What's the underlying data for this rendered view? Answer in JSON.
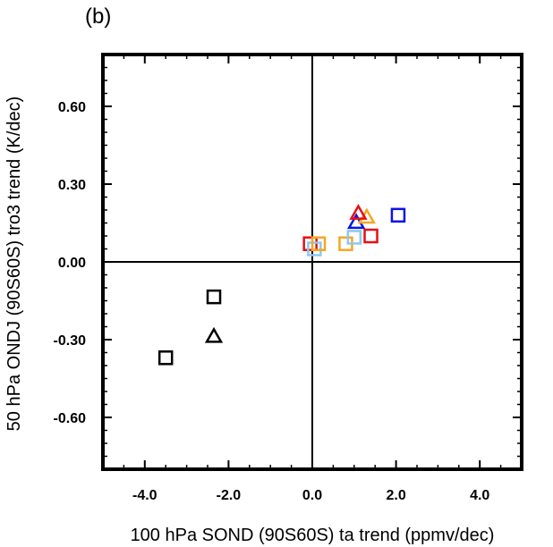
{
  "chart_data": {
    "type": "scatter",
    "panel_label": "(b)",
    "title": "",
    "xlabel": "100 hPa SOND (90S60S) ta trend (ppmv/dec)",
    "ylabel": "50 hPa ONDJ (90S60S) tro3 trend (K/dec)",
    "xlim": [
      -5.0,
      5.0
    ],
    "ylim": [
      -0.8,
      0.8
    ],
    "x_ticks": [
      -4.0,
      -2.0,
      0.0,
      2.0,
      4.0
    ],
    "x_tick_labels": [
      "-4.0",
      "-2.0",
      "0.0",
      "2.0",
      "4.0"
    ],
    "y_ticks": [
      -0.6,
      -0.3,
      0.0,
      0.3,
      0.6
    ],
    "y_tick_labels": [
      "-0.60",
      "-0.30",
      "0.00",
      "0.30",
      "0.60"
    ],
    "zero_lines": true,
    "grid": false,
    "legend": "none",
    "colors": {
      "black": "#000000",
      "blue": "#0a14e6",
      "red": "#e60f14",
      "orange": "#f5a623",
      "lightblue": "#8cc8f0"
    },
    "points": [
      {
        "x": -3.5,
        "y": -0.37,
        "marker": "square",
        "color": "black"
      },
      {
        "x": -2.35,
        "y": -0.135,
        "marker": "square",
        "color": "black"
      },
      {
        "x": -2.35,
        "y": -0.29,
        "marker": "triangle",
        "color": "black"
      },
      {
        "x": -0.05,
        "y": 0.07,
        "marker": "square",
        "color": "red"
      },
      {
        "x": 0.05,
        "y": 0.05,
        "marker": "square",
        "color": "lightblue"
      },
      {
        "x": 0.15,
        "y": 0.07,
        "marker": "square",
        "color": "orange"
      },
      {
        "x": 0.8,
        "y": 0.07,
        "marker": "square",
        "color": "orange"
      },
      {
        "x": 1.0,
        "y": 0.095,
        "marker": "square",
        "color": "lightblue"
      },
      {
        "x": 1.4,
        "y": 0.1,
        "marker": "square",
        "color": "red"
      },
      {
        "x": 2.05,
        "y": 0.18,
        "marker": "square",
        "color": "blue"
      },
      {
        "x": 1.05,
        "y": 0.15,
        "marker": "triangle",
        "color": "blue"
      },
      {
        "x": 1.3,
        "y": 0.17,
        "marker": "triangle",
        "color": "orange"
      },
      {
        "x": 1.1,
        "y": 0.185,
        "marker": "triangle",
        "color": "red"
      }
    ]
  }
}
